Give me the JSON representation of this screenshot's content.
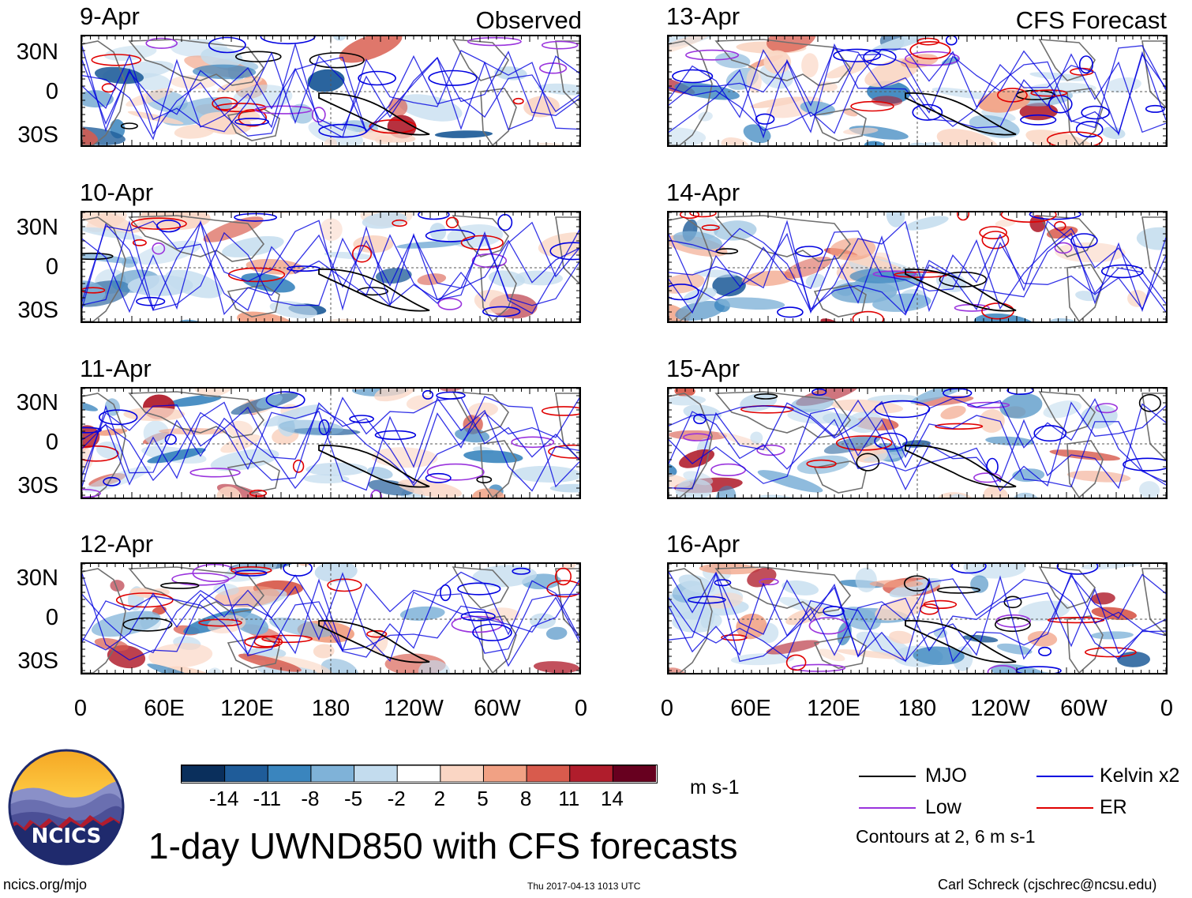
{
  "headers": {
    "left": "Observed",
    "right": "CFS Forecast"
  },
  "panels_left": [
    {
      "date": "9-Apr"
    },
    {
      "date": "10-Apr"
    },
    {
      "date": "11-Apr"
    },
    {
      "date": "12-Apr"
    }
  ],
  "panels_right": [
    {
      "date": "13-Apr"
    },
    {
      "date": "14-Apr"
    },
    {
      "date": "15-Apr"
    },
    {
      "date": "16-Apr"
    }
  ],
  "lat_labels": [
    "30N",
    "0",
    "30S"
  ],
  "lon_labels": [
    "0",
    "60E",
    "120E",
    "180",
    "120W",
    "60W",
    "0"
  ],
  "colorbar": {
    "levels": [
      "-14",
      "-11",
      "-8",
      "-5",
      "-2",
      "2",
      "5",
      "8",
      "11",
      "14"
    ],
    "colors": [
      "#0a2f5c",
      "#1f5c99",
      "#3a85be",
      "#7fb2d8",
      "#c3dcee",
      "#ffffff",
      "#fad6c4",
      "#f1a184",
      "#d85b4d",
      "#b01d2c",
      "#67001f"
    ],
    "units": "m s-1"
  },
  "legend": {
    "items": [
      {
        "label": "MJO",
        "color": "#000000"
      },
      {
        "label": "Kelvin x2",
        "color": "#0000e0"
      },
      {
        "label": "Low",
        "color": "#9a33dd"
      },
      {
        "label": "ER",
        "color": "#e00000"
      }
    ],
    "note": "Contours at 2, 6 m s-1"
  },
  "title": "1-day UWND850 with CFS forecasts",
  "logo_text": "NCICS",
  "footer": {
    "url": "ncics.org/mjo",
    "timestamp": "Thu 2017-04-13 1013 UTC",
    "author": "Carl Schreck (cjschrec@ncsu.edu)"
  }
}
